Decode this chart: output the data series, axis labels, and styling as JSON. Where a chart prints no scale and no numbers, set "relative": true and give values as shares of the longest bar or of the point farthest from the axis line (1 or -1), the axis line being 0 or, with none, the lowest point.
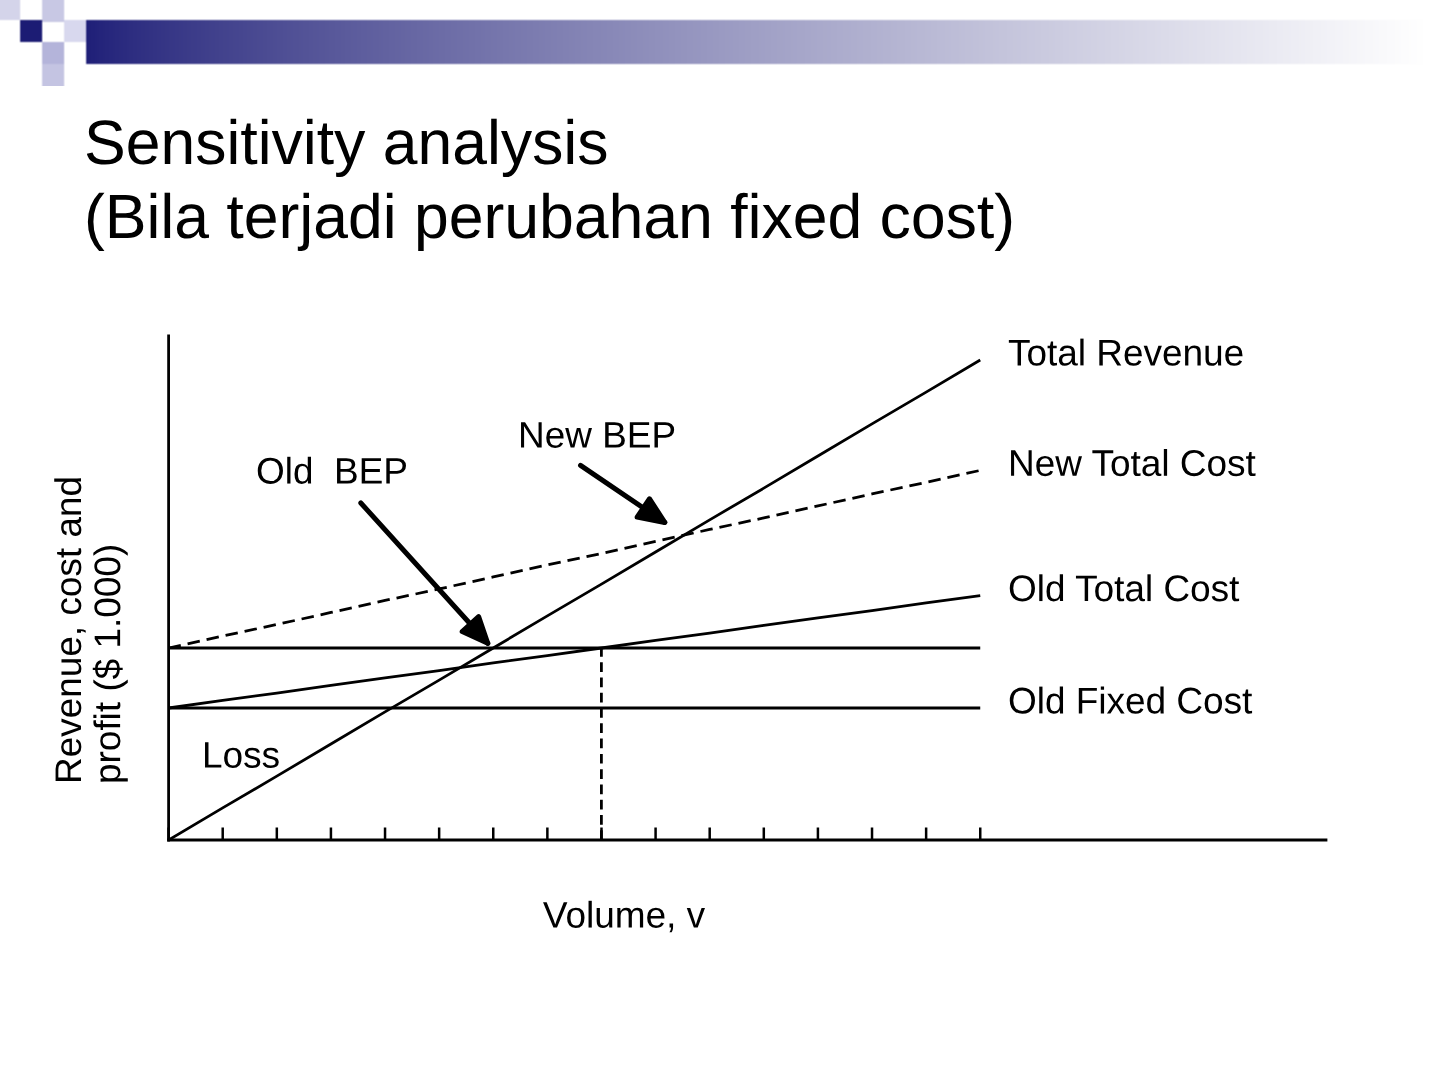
{
  "chart_data": {
    "type": "line",
    "title": "Sensitivity analysis",
    "subtitle": "(Bila terjadi perubahan fixed cost)",
    "xlabel": "Volume, v",
    "ylabel": "Revenue, cost and\nprofit ($ 1.000)",
    "relative": true,
    "categories": [
      null,
      null,
      null,
      null,
      null,
      null,
      null,
      null,
      null,
      null,
      null,
      null,
      null,
      null,
      null,
      null
    ],
    "series": [
      {
        "name": "Total Revenue",
        "color": "#000000",
        "line_style": "solid",
        "values": [
          0,
          0.067,
          0.133,
          0.2,
          0.267,
          0.333,
          0.4,
          0.467,
          0.533,
          0.6,
          0.667,
          0.733,
          0.8,
          0.867,
          0.933,
          1
        ]
      },
      {
        "name": "New Total Cost",
        "color": "#000000",
        "line_style": "dashed",
        "values": [
          0.4,
          0.425,
          0.449,
          0.474,
          0.499,
          0.523,
          0.548,
          0.573,
          0.597,
          0.622,
          0.647,
          0.671,
          0.696,
          0.721,
          0.745,
          0.77
        ]
      },
      {
        "name": "Old Total Cost",
        "color": "#000000",
        "line_style": "solid",
        "values": [
          0.275,
          0.291,
          0.306,
          0.322,
          0.338,
          0.353,
          0.369,
          0.384,
          0.4,
          0.416,
          0.431,
          0.447,
          0.463,
          0.478,
          0.494,
          0.509
        ]
      },
      {
        "color": "#000000",
        "line_style": "solid",
        "values": [
          0.4,
          0.4,
          0.4,
          0.4,
          0.4,
          0.4,
          0.4,
          0.4,
          0.4,
          0.4,
          0.4,
          0.4,
          0.4,
          0.4,
          0.4,
          0.4
        ]
      },
      {
        "name": "Old Fixed Cost",
        "color": "#000000",
        "line_style": "solid",
        "values": [
          0.275,
          0.275,
          0.275,
          0.275,
          0.275,
          0.275,
          0.275,
          0.275,
          0.275,
          0.275,
          0.275,
          0.275,
          0.275,
          0.275,
          0.275,
          0.275
        ]
      }
    ],
    "annotations": [
      "Old  BEP",
      "New BEP",
      "Loss"
    ]
  }
}
